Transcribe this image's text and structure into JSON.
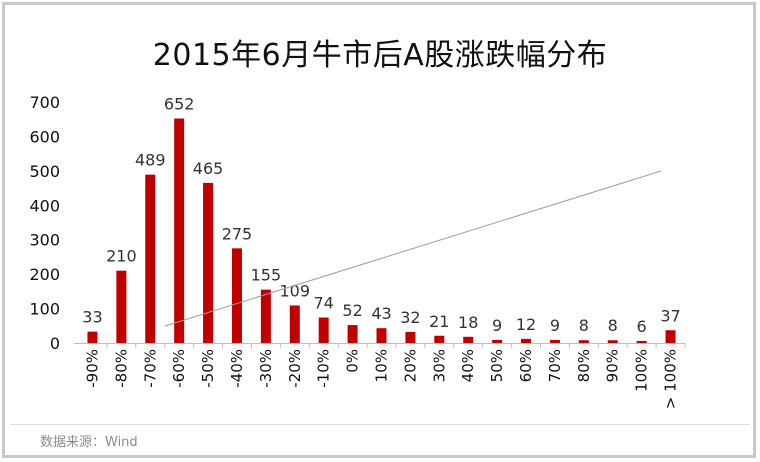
{
  "chart_data": {
    "type": "bar",
    "title": "2015年6月牛市后A股涨跌幅分布",
    "categories": [
      "-90%",
      "-80%",
      "-70%",
      "-60%",
      "-50%",
      "-40%",
      "-30%",
      "-20%",
      "-10%",
      "0%",
      "10%",
      "20%",
      "30%",
      "40%",
      "50%",
      "60%",
      "70%",
      "80%",
      "90%",
      "100%",
      "> 100%"
    ],
    "values": [
      33,
      210,
      489,
      652,
      465,
      275,
      155,
      109,
      74,
      52,
      43,
      32,
      21,
      18,
      9,
      12,
      9,
      8,
      8,
      6,
      37
    ],
    "ylim": [
      0,
      700
    ],
    "yticks": [
      0,
      100,
      200,
      300,
      400,
      500,
      600,
      700
    ],
    "bar_color": "#c00000",
    "trendline_color": "#9e9e9e",
    "grid": false,
    "legend": "none"
  },
  "source_note": "数据来源：Wind"
}
